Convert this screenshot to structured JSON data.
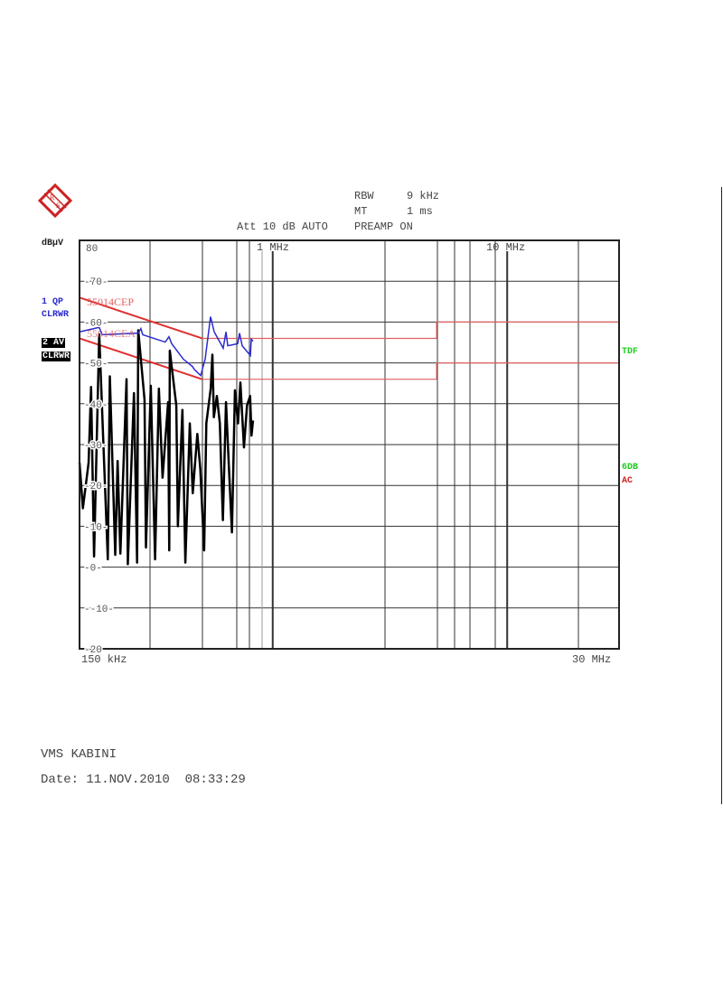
{
  "header": {
    "rbw_label": "RBW",
    "rbw_value": "9 kHz",
    "mt_label": "MT",
    "mt_value": "1 ms",
    "att": "Att 10 dB AUTO",
    "preamp": "PREAMP ON"
  },
  "logo": {
    "text": "R&S",
    "color": "#cc2222"
  },
  "legend": {
    "unit": "dBµV",
    "trace1_line1": "1 QP",
    "trace1_line2": "CLRWR",
    "trace2_line1": "2 AV",
    "trace2_line2": "CLRWR",
    "right_tdf": "TDF",
    "right_6db": "6DB",
    "right_ac": "AC"
  },
  "colors": {
    "qp_trace": "#2a2ad0",
    "av_trace": "#000000",
    "limit": "#e04040",
    "green_label": "#22cc22",
    "red_label": "#cc2222"
  },
  "chart_data": {
    "type": "line",
    "title": "",
    "xlabel": "",
    "ylabel": "dBµV",
    "x_scale": "log",
    "xlim_mhz": [
      0.15,
      30
    ],
    "ylim": [
      -20,
      80
    ],
    "x_start_label": "150 kHz",
    "x_end_label": "30 MHz",
    "x_marker_labels": [
      {
        "mhz": 1,
        "label": "1 MHz"
      },
      {
        "mhz": 10,
        "label": "10 MHz"
      }
    ],
    "y_ticks": [
      80,
      70,
      60,
      50,
      40,
      30,
      20,
      10,
      0,
      -10,
      -20
    ],
    "grid": true,
    "limit_lines": [
      {
        "name": "55014CEP",
        "points": [
          [
            0.15,
            66
          ],
          [
            0.5,
            56
          ],
          [
            5,
            56
          ],
          [
            5,
            60
          ],
          [
            30,
            60
          ]
        ]
      },
      {
        "name": "55014CEA",
        "points": [
          [
            0.15,
            56
          ],
          [
            0.5,
            46
          ],
          [
            5,
            46
          ],
          [
            5,
            50
          ],
          [
            30,
            50
          ]
        ]
      }
    ],
    "series": [
      {
        "name": "1 QP",
        "points": [
          [
            0.15,
            57.6
          ],
          [
            0.182,
            58.7
          ],
          [
            0.187,
            56.9
          ],
          [
            0.267,
            57.3
          ],
          [
            0.274,
            58.4
          ],
          [
            0.279,
            56.9
          ],
          [
            0.348,
            55.1
          ],
          [
            0.361,
            56.4
          ],
          [
            0.371,
            54.7
          ],
          [
            0.416,
            50.9
          ],
          [
            0.455,
            49.1
          ],
          [
            0.463,
            48.4
          ],
          [
            0.493,
            46.9
          ],
          [
            0.515,
            50.9
          ],
          [
            0.543,
            61.3
          ],
          [
            0.563,
            57.6
          ],
          [
            0.615,
            53.6
          ],
          [
            0.632,
            57.6
          ],
          [
            0.643,
            54.2
          ],
          [
            0.709,
            54.7
          ],
          [
            0.722,
            57.3
          ],
          [
            0.741,
            54.2
          ],
          [
            0.803,
            51.8
          ],
          [
            0.81,
            55.8
          ],
          [
            0.824,
            55.3
          ]
        ]
      },
      {
        "name": "2 AV",
        "points": [
          [
            0.15,
            25.6
          ],
          [
            0.155,
            14.4
          ],
          [
            0.164,
            25.6
          ],
          [
            0.168,
            44.1
          ],
          [
            0.173,
            2.6
          ],
          [
            0.182,
            57
          ],
          [
            0.198,
            1.9
          ],
          [
            0.202,
            46.7
          ],
          [
            0.213,
            3
          ],
          [
            0.218,
            26
          ],
          [
            0.224,
            3.3
          ],
          [
            0.238,
            46
          ],
          [
            0.241,
            0.7
          ],
          [
            0.256,
            42.6
          ],
          [
            0.264,
            1.1
          ],
          [
            0.267,
            58
          ],
          [
            0.284,
            41
          ],
          [
            0.288,
            4.8
          ],
          [
            0.302,
            44.4
          ],
          [
            0.315,
            1.9
          ],
          [
            0.327,
            43.7
          ],
          [
            0.339,
            21.9
          ],
          [
            0.358,
            40.4
          ],
          [
            0.362,
            4.1
          ],
          [
            0.364,
            53
          ],
          [
            0.388,
            39.6
          ],
          [
            0.394,
            10
          ],
          [
            0.412,
            38.5
          ],
          [
            0.424,
            1.1
          ],
          [
            0.443,
            35.2
          ],
          [
            0.456,
            18.1
          ],
          [
            0.477,
            32.6
          ],
          [
            0.491,
            24.1
          ],
          [
            0.51,
            4.1
          ],
          [
            0.521,
            35.2
          ],
          [
            0.544,
            43.7
          ],
          [
            0.553,
            52
          ],
          [
            0.561,
            36.7
          ],
          [
            0.578,
            41.9
          ],
          [
            0.595,
            35.2
          ],
          [
            0.613,
            11.5
          ],
          [
            0.632,
            40.4
          ],
          [
            0.65,
            24.8
          ],
          [
            0.67,
            8.5
          ],
          [
            0.69,
            43.3
          ],
          [
            0.711,
            35.2
          ],
          [
            0.728,
            45.2
          ],
          [
            0.754,
            29.3
          ],
          [
            0.777,
            39.6
          ],
          [
            0.801,
            41.9
          ],
          [
            0.812,
            32.2
          ],
          [
            0.824,
            35.9
          ]
        ]
      }
    ]
  },
  "footer": {
    "line1": "VMS KABINI",
    "line2": "Date: 11.NOV.2010  08:33:29"
  }
}
